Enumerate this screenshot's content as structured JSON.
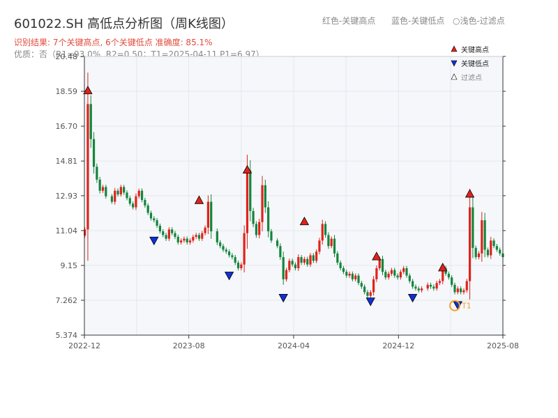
{
  "header": {
    "title": "601022.SH 高低点分析图（周K线图）",
    "result_line": "识别结果: 7个关键高点, 6个关键低点  准确度: 85.1%",
    "quality_line": "优质：否（R1=93.0%, R2=0.50；T1=2025-04-11 P1=6.97）",
    "color_hint_red": "红色-关键高点",
    "color_hint_blue": "蓝色-关键低点",
    "color_hint_light": "○浅色-过滤点"
  },
  "legend": {
    "high": "关键高点",
    "low": "关键低点",
    "filtered": "过滤点"
  },
  "colors": {
    "up": "#e0221b",
    "down": "#14853c",
    "high_marker": "#e0221b",
    "low_marker": "#1030d8",
    "t1_ring": "#f0a030",
    "axis": "#333333",
    "plot_bg": "#f5f7fa",
    "grid": "#e3e7ee"
  },
  "chart_data": {
    "type": "candlestick",
    "x_axis": {
      "type": "date",
      "range": [
        "2022-12-01",
        "2025-08-01"
      ],
      "ticks": [
        "2022-12",
        "2023-08",
        "2024-04",
        "2024-12",
        "2025-08"
      ]
    },
    "y_axis": {
      "range": [
        5.374,
        20.48
      ],
      "ticks": [
        5.374,
        7.262,
        9.15,
        11.04,
        12.93,
        14.81,
        16.7,
        18.59,
        20.48
      ]
    },
    "grid": true,
    "close_series": [
      [
        "2022-12-02",
        11.1
      ],
      [
        "2022-12-09",
        17.9
      ],
      [
        "2022-12-16",
        16.0
      ],
      [
        "2022-12-23",
        14.5
      ],
      [
        "2022-12-30",
        13.8
      ],
      [
        "2023-01-06",
        13.2
      ],
      [
        "2023-01-13",
        13.4
      ],
      [
        "2023-01-20",
        12.9
      ],
      [
        "2023-02-03",
        12.6
      ],
      [
        "2023-02-10",
        13.2
      ],
      [
        "2023-02-17",
        13.0
      ],
      [
        "2023-02-24",
        13.4
      ],
      [
        "2023-03-03",
        13.1
      ],
      [
        "2023-03-10",
        12.8
      ],
      [
        "2023-03-17",
        12.5
      ],
      [
        "2023-03-24",
        12.3
      ],
      [
        "2023-03-31",
        12.9
      ],
      [
        "2023-04-07",
        13.2
      ],
      [
        "2023-04-14",
        12.7
      ],
      [
        "2023-04-21",
        12.4
      ],
      [
        "2023-04-28",
        12.0
      ],
      [
        "2023-05-05",
        11.7
      ],
      [
        "2023-05-12",
        11.6
      ],
      [
        "2023-05-19",
        11.3
      ],
      [
        "2023-05-26",
        11.0
      ],
      [
        "2023-06-02",
        10.8
      ],
      [
        "2023-06-09",
        10.6
      ],
      [
        "2023-06-16",
        11.1
      ],
      [
        "2023-06-23",
        10.9
      ],
      [
        "2023-06-30",
        10.7
      ],
      [
        "2023-07-07",
        10.4
      ],
      [
        "2023-07-14",
        10.5
      ],
      [
        "2023-07-21",
        10.6
      ],
      [
        "2023-07-28",
        10.4
      ],
      [
        "2023-08-04",
        10.5
      ],
      [
        "2023-08-11",
        10.7
      ],
      [
        "2023-08-18",
        10.8
      ],
      [
        "2023-08-25",
        10.6
      ],
      [
        "2023-09-01",
        10.9
      ],
      [
        "2023-09-08",
        11.2
      ],
      [
        "2023-09-15",
        12.6
      ],
      [
        "2023-09-22",
        11.0
      ],
      [
        "2023-10-06",
        10.4
      ],
      [
        "2023-10-13",
        10.2
      ],
      [
        "2023-10-20",
        10.0
      ],
      [
        "2023-10-27",
        9.9
      ],
      [
        "2023-11-03",
        9.7
      ],
      [
        "2023-11-10",
        9.6
      ],
      [
        "2023-11-17",
        9.3
      ],
      [
        "2023-11-24",
        9.0
      ],
      [
        "2023-12-01",
        9.2
      ],
      [
        "2023-12-08",
        10.9
      ],
      [
        "2023-12-15",
        14.3
      ],
      [
        "2023-12-22",
        12.1
      ],
      [
        "2023-12-29",
        11.4
      ],
      [
        "2024-01-05",
        10.8
      ],
      [
        "2024-01-12",
        11.5
      ],
      [
        "2024-01-19",
        13.5
      ],
      [
        "2024-01-26",
        12.3
      ],
      [
        "2024-02-02",
        11.0
      ],
      [
        "2024-02-09",
        10.5
      ],
      [
        "2024-02-23",
        10.2
      ],
      [
        "2024-03-01",
        9.6
      ],
      [
        "2024-03-08",
        8.4
      ],
      [
        "2024-03-15",
        8.9
      ],
      [
        "2024-03-22",
        9.4
      ],
      [
        "2024-03-29",
        9.2
      ],
      [
        "2024-04-05",
        9.0
      ],
      [
        "2024-04-12",
        9.6
      ],
      [
        "2024-04-19",
        9.3
      ],
      [
        "2024-04-26",
        9.5
      ],
      [
        "2024-05-03",
        9.2
      ],
      [
        "2024-05-10",
        9.7
      ],
      [
        "2024-05-17",
        9.4
      ],
      [
        "2024-05-24",
        9.9
      ],
      [
        "2024-05-31",
        10.5
      ],
      [
        "2024-06-07",
        11.4
      ],
      [
        "2024-06-14",
        10.8
      ],
      [
        "2024-06-21",
        10.2
      ],
      [
        "2024-06-28",
        10.6
      ],
      [
        "2024-07-05",
        9.8
      ],
      [
        "2024-07-12",
        9.3
      ],
      [
        "2024-07-19",
        9.0
      ],
      [
        "2024-07-26",
        8.8
      ],
      [
        "2024-08-02",
        8.6
      ],
      [
        "2024-08-09",
        8.7
      ],
      [
        "2024-08-16",
        8.4
      ],
      [
        "2024-08-23",
        8.6
      ],
      [
        "2024-08-30",
        8.2
      ],
      [
        "2024-09-06",
        8.0
      ],
      [
        "2024-09-13",
        7.7
      ],
      [
        "2024-09-20",
        7.5
      ],
      [
        "2024-09-27",
        7.7
      ],
      [
        "2024-10-04",
        8.4
      ],
      [
        "2024-10-11",
        9.0
      ],
      [
        "2024-10-18",
        9.5
      ],
      [
        "2024-10-25",
        8.8
      ],
      [
        "2024-11-01",
        8.5
      ],
      [
        "2024-11-08",
        8.7
      ],
      [
        "2024-11-15",
        8.9
      ],
      [
        "2024-11-22",
        8.6
      ],
      [
        "2024-11-29",
        8.5
      ],
      [
        "2024-12-06",
        8.8
      ],
      [
        "2024-12-13",
        9.0
      ],
      [
        "2024-12-20",
        8.6
      ],
      [
        "2024-12-27",
        8.3
      ],
      [
        "2025-01-03",
        8.0
      ],
      [
        "2025-01-10",
        7.9
      ],
      [
        "2025-01-17",
        7.8
      ],
      [
        "2025-01-24",
        7.9
      ],
      [
        "2025-02-07",
        8.1
      ],
      [
        "2025-02-14",
        8.0
      ],
      [
        "2025-02-21",
        7.9
      ],
      [
        "2025-02-28",
        8.2
      ],
      [
        "2025-03-07",
        8.3
      ],
      [
        "2025-03-14",
        9.0
      ],
      [
        "2025-03-21",
        8.7
      ],
      [
        "2025-03-28",
        8.5
      ],
      [
        "2025-04-04",
        8.1
      ],
      [
        "2025-04-11",
        7.7
      ],
      [
        "2025-04-18",
        7.9
      ],
      [
        "2025-04-25",
        7.7
      ],
      [
        "2025-05-02",
        7.8
      ],
      [
        "2025-05-09",
        8.3
      ],
      [
        "2025-05-16",
        12.3
      ],
      [
        "2025-05-23",
        10.1
      ],
      [
        "2025-05-30",
        9.6
      ],
      [
        "2025-06-06",
        9.8
      ],
      [
        "2025-06-13",
        11.6
      ],
      [
        "2025-06-20",
        10.0
      ],
      [
        "2025-06-27",
        9.7
      ],
      [
        "2025-07-04",
        10.5
      ],
      [
        "2025-07-11",
        10.2
      ],
      [
        "2025-07-18",
        10.0
      ],
      [
        "2025-07-25",
        9.8
      ],
      [
        "2025-08-01",
        9.6
      ]
    ],
    "key_highs": [
      [
        "2022-12-09",
        18.6
      ],
      [
        "2023-08-25",
        12.65
      ],
      [
        "2023-12-15",
        14.3
      ],
      [
        "2024-04-26",
        11.5
      ],
      [
        "2024-10-11",
        9.6
      ],
      [
        "2025-03-14",
        9.0
      ],
      [
        "2025-05-16",
        13.0
      ]
    ],
    "key_lows": [
      [
        "2023-05-12",
        10.5
      ],
      [
        "2023-11-03",
        8.6
      ],
      [
        "2024-03-08",
        7.4
      ],
      [
        "2024-09-27",
        7.2
      ],
      [
        "2025-01-03",
        7.4
      ],
      [
        "2025-04-18",
        7.0
      ]
    ],
    "t1_marker": {
      "label": "T1",
      "date": "2025-04-11",
      "value": 6.97
    }
  }
}
